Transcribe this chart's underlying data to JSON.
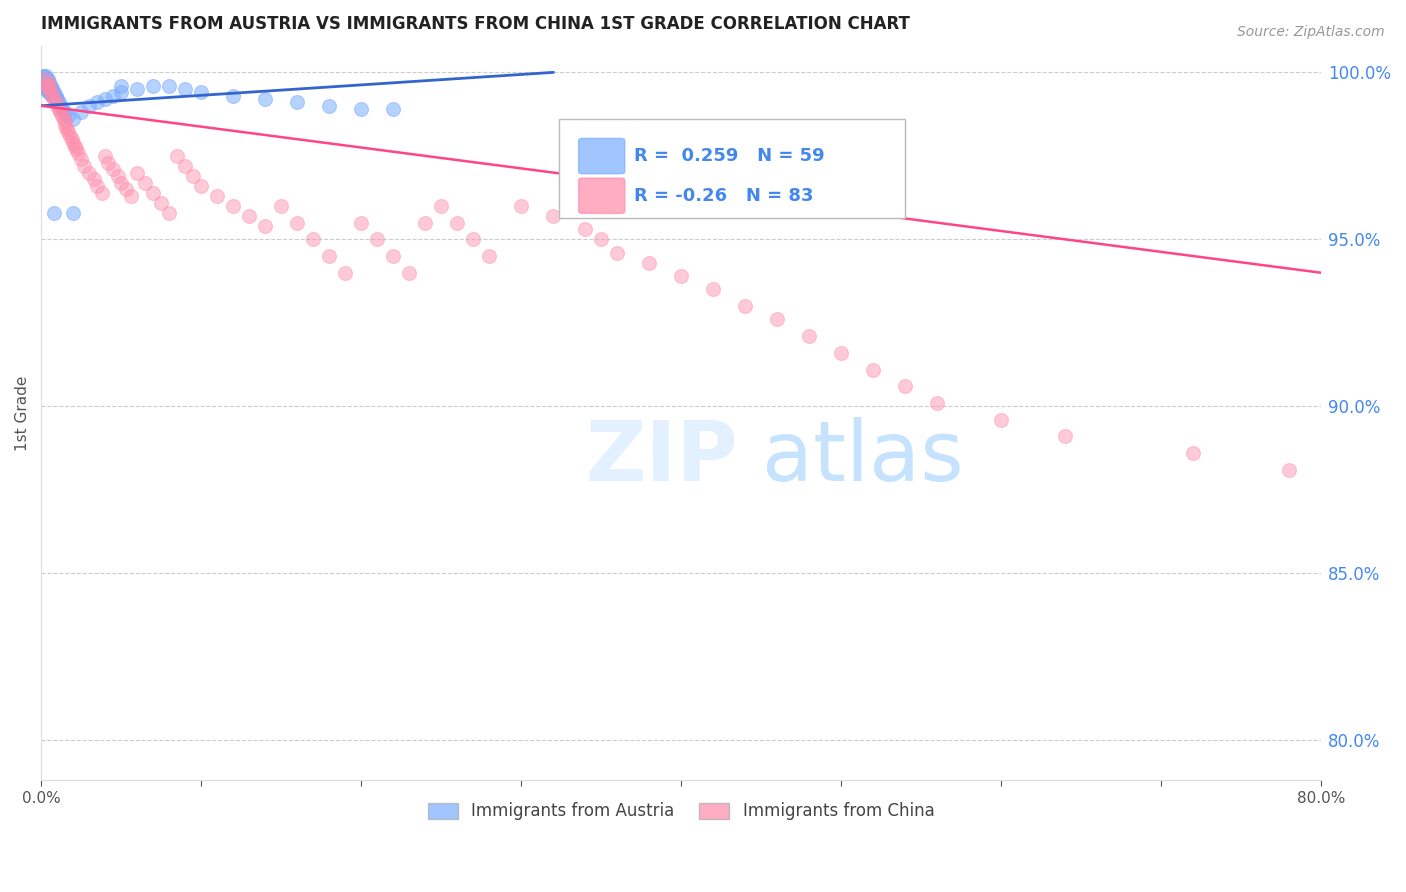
{
  "title": "IMMIGRANTS FROM AUSTRIA VS IMMIGRANTS FROM CHINA 1ST GRADE CORRELATION CHART",
  "source_text": "Source: ZipAtlas.com",
  "ylabel": "1st Grade",
  "right_yticks": [
    "100.0%",
    "95.0%",
    "90.0%",
    "85.0%",
    "80.0%"
  ],
  "right_ytick_vals": [
    1.0,
    0.95,
    0.9,
    0.85,
    0.8
  ],
  "xlim": [
    0.0,
    0.8
  ],
  "ylim": [
    0.788,
    1.008
  ],
  "austria_R": 0.259,
  "austria_N": 59,
  "china_R": -0.26,
  "china_N": 83,
  "austria_color": "#7aadff",
  "china_color": "#ff8aaa",
  "austria_line_color": "#3366cc",
  "china_line_color": "#ff4488",
  "scatter_size": 100,
  "watermark_zip": "ZIP",
  "watermark_atlas": "atlas",
  "background_color": "#ffffff",
  "grid_color": "#cccccc",
  "title_color": "#222222",
  "right_axis_color": "#4488ee",
  "austria_scatter_x": [
    0.001,
    0.001,
    0.001,
    0.002,
    0.002,
    0.002,
    0.002,
    0.003,
    0.003,
    0.003,
    0.003,
    0.003,
    0.004,
    0.004,
    0.004,
    0.004,
    0.004,
    0.005,
    0.005,
    0.005,
    0.005,
    0.006,
    0.006,
    0.006,
    0.007,
    0.007,
    0.007,
    0.008,
    0.008,
    0.009,
    0.009,
    0.01,
    0.01,
    0.011,
    0.012,
    0.013,
    0.015,
    0.017,
    0.02,
    0.025,
    0.03,
    0.035,
    0.04,
    0.045,
    0.05,
    0.06,
    0.07,
    0.08,
    0.09,
    0.1,
    0.12,
    0.14,
    0.16,
    0.18,
    0.2,
    0.22,
    0.02,
    0.008,
    0.05
  ],
  "austria_scatter_y": [
    0.999,
    0.998,
    0.997,
    0.999,
    0.998,
    0.997,
    0.996,
    0.999,
    0.998,
    0.997,
    0.996,
    0.995,
    0.998,
    0.997,
    0.996,
    0.995,
    0.994,
    0.997,
    0.996,
    0.995,
    0.994,
    0.996,
    0.995,
    0.994,
    0.995,
    0.994,
    0.993,
    0.994,
    0.993,
    0.993,
    0.992,
    0.992,
    0.991,
    0.991,
    0.99,
    0.989,
    0.988,
    0.987,
    0.986,
    0.988,
    0.99,
    0.991,
    0.992,
    0.993,
    0.994,
    0.995,
    0.996,
    0.996,
    0.995,
    0.994,
    0.993,
    0.992,
    0.991,
    0.99,
    0.989,
    0.989,
    0.958,
    0.958,
    0.996
  ],
  "china_scatter_x": [
    0.002,
    0.003,
    0.004,
    0.005,
    0.005,
    0.006,
    0.007,
    0.008,
    0.009,
    0.01,
    0.011,
    0.012,
    0.013,
    0.014,
    0.015,
    0.015,
    0.016,
    0.017,
    0.018,
    0.019,
    0.02,
    0.021,
    0.022,
    0.023,
    0.025,
    0.027,
    0.03,
    0.033,
    0.035,
    0.038,
    0.04,
    0.042,
    0.045,
    0.048,
    0.05,
    0.053,
    0.056,
    0.06,
    0.065,
    0.07,
    0.075,
    0.08,
    0.085,
    0.09,
    0.095,
    0.1,
    0.11,
    0.12,
    0.13,
    0.14,
    0.15,
    0.16,
    0.17,
    0.18,
    0.19,
    0.2,
    0.21,
    0.22,
    0.23,
    0.24,
    0.25,
    0.26,
    0.27,
    0.28,
    0.3,
    0.32,
    0.34,
    0.35,
    0.36,
    0.38,
    0.4,
    0.42,
    0.44,
    0.46,
    0.48,
    0.5,
    0.52,
    0.54,
    0.56,
    0.6,
    0.64,
    0.72,
    0.78
  ],
  "china_scatter_y": [
    0.998,
    0.996,
    0.997,
    0.996,
    0.995,
    0.994,
    0.993,
    0.992,
    0.991,
    0.99,
    0.989,
    0.988,
    0.987,
    0.986,
    0.985,
    0.984,
    0.983,
    0.982,
    0.981,
    0.98,
    0.979,
    0.978,
    0.977,
    0.976,
    0.974,
    0.972,
    0.97,
    0.968,
    0.966,
    0.964,
    0.975,
    0.973,
    0.971,
    0.969,
    0.967,
    0.965,
    0.963,
    0.97,
    0.967,
    0.964,
    0.961,
    0.958,
    0.975,
    0.972,
    0.969,
    0.966,
    0.963,
    0.96,
    0.957,
    0.954,
    0.96,
    0.955,
    0.95,
    0.945,
    0.94,
    0.955,
    0.95,
    0.945,
    0.94,
    0.955,
    0.96,
    0.955,
    0.95,
    0.945,
    0.96,
    0.957,
    0.953,
    0.95,
    0.946,
    0.943,
    0.939,
    0.935,
    0.93,
    0.926,
    0.921,
    0.916,
    0.911,
    0.906,
    0.901,
    0.896,
    0.891,
    0.886,
    0.881
  ],
  "austria_line_x0": 0.0,
  "austria_line_x1": 0.32,
  "austria_line_y0": 0.99,
  "austria_line_y1": 1.0,
  "china_line_x0": 0.0,
  "china_line_x1": 0.8,
  "china_line_y0": 0.99,
  "china_line_y1": 0.94
}
